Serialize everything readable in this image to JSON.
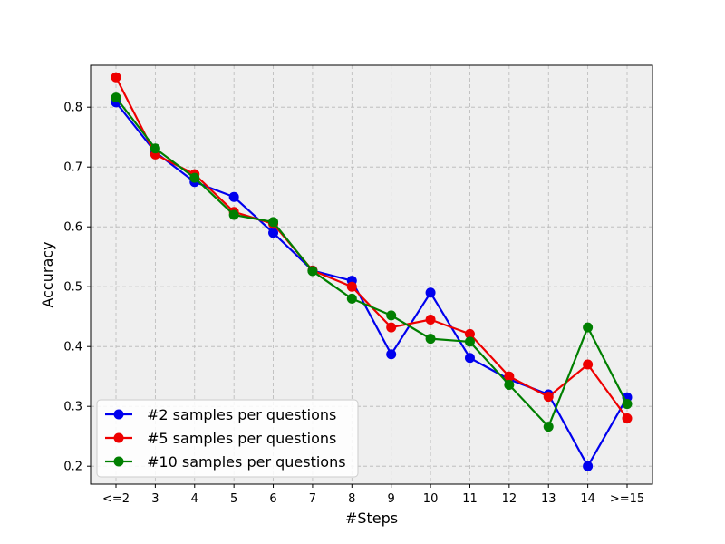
{
  "chart_data": {
    "type": "line",
    "title": "",
    "xlabel": "#Steps",
    "ylabel": "Accuracy",
    "categories": [
      "<=2",
      "3",
      "4",
      "5",
      "6",
      "7",
      "8",
      "9",
      "10",
      "11",
      "12",
      "13",
      "14",
      ">=15"
    ],
    "ylim": [
      0.17,
      0.87
    ],
    "yticks": [
      0.2,
      0.3,
      0.4,
      0.5,
      0.6,
      0.7,
      0.8
    ],
    "ytick_labels": [
      "0.2",
      "0.3",
      "0.4",
      "0.5",
      "0.6",
      "0.7",
      "0.8"
    ],
    "grid": true,
    "legend_position": "lower-left",
    "background_color": "#efefef",
    "series": [
      {
        "name": "#2 samples per questions",
        "color": "#0000ee",
        "marker": "circle",
        "values": [
          0.808,
          0.725,
          0.675,
          0.65,
          0.59,
          0.527,
          0.51,
          0.387,
          0.49,
          0.381,
          0.345,
          0.32,
          0.2,
          0.315
        ]
      },
      {
        "name": "#5 samples per questions",
        "color": "#ee0000",
        "marker": "circle",
        "values": [
          0.85,
          0.721,
          0.688,
          0.625,
          0.605,
          0.527,
          0.5,
          0.432,
          0.445,
          0.421,
          0.35,
          0.316,
          0.37,
          0.28
        ]
      },
      {
        "name": "#10 samples per questions",
        "color": "#007f00",
        "marker": "circle",
        "values": [
          0.816,
          0.731,
          0.682,
          0.62,
          0.608,
          0.526,
          0.48,
          0.452,
          0.413,
          0.408,
          0.336,
          0.266,
          0.432,
          0.304
        ]
      }
    ]
  }
}
